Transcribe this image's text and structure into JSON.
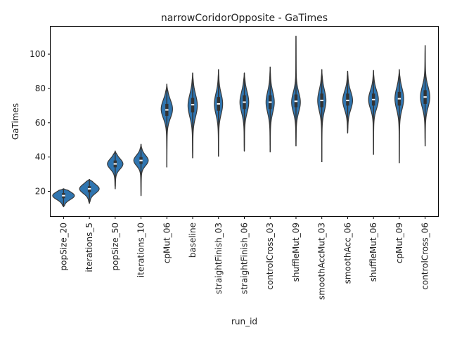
{
  "chart_data": {
    "type": "violin",
    "title": "narrowCoridorOpposite - GaTimes",
    "xlabel": "run_id",
    "ylabel": "GaTimes",
    "ylim": [
      5.5,
      116
    ],
    "yticks": [
      20,
      40,
      60,
      80,
      100
    ],
    "grid": false,
    "legend": "none",
    "colors": {
      "violin_fill": "#2f75b0",
      "violin_edge": "#3a3a3a",
      "median": "#ffffff",
      "box": "#333333"
    },
    "categories": [
      "popSize_20",
      "iterations_5",
      "popSize_50",
      "iterations_10",
      "cpMut_06",
      "baseline",
      "straightFinish_03",
      "straightFinish_06",
      "controlCross_03",
      "shuffleMut_09",
      "smoothAccMut_03",
      "smoothAcc_06",
      "shuffleMut_06",
      "cpMut_09",
      "controlCross_06"
    ],
    "series": [
      {
        "min": 11,
        "q1": 16,
        "median": 17.5,
        "q3": 19,
        "max": 21.5,
        "width": 0.42,
        "mode": 17.5
      },
      {
        "min": 13,
        "q1": 19.5,
        "median": 21.5,
        "q3": 23,
        "max": 27,
        "width": 0.38,
        "mode": 21.5
      },
      {
        "min": 21.5,
        "q1": 34,
        "median": 36,
        "q3": 38,
        "max": 43.5,
        "width": 0.3,
        "mode": 36
      },
      {
        "min": 17.5,
        "q1": 36,
        "median": 38,
        "q3": 40,
        "max": 47.5,
        "width": 0.28,
        "mode": 38
      },
      {
        "min": 34,
        "q1": 64,
        "median": 67.5,
        "q3": 71,
        "max": 82.5,
        "width": 0.22,
        "mode": 68
      },
      {
        "min": 39.5,
        "q1": 66,
        "median": 70.5,
        "q3": 74.5,
        "max": 89,
        "width": 0.18,
        "mode": 70
      },
      {
        "min": 40.5,
        "q1": 67,
        "median": 71,
        "q3": 75,
        "max": 91,
        "width": 0.16,
        "mode": 71
      },
      {
        "min": 43.5,
        "q1": 68,
        "median": 72,
        "q3": 76,
        "max": 89,
        "width": 0.17,
        "mode": 72
      },
      {
        "min": 43,
        "q1": 68,
        "median": 72,
        "q3": 76,
        "max": 92.5,
        "width": 0.16,
        "mode": 72
      },
      {
        "min": 46.5,
        "q1": 69,
        "median": 72.5,
        "q3": 76.5,
        "max": 110.5,
        "width": 0.17,
        "mode": 72
      },
      {
        "min": 37,
        "q1": 69,
        "median": 73,
        "q3": 77,
        "max": 91,
        "width": 0.16,
        "mode": 73
      },
      {
        "min": 54,
        "q1": 70,
        "median": 73,
        "q3": 77,
        "max": 90,
        "width": 0.19,
        "mode": 73
      },
      {
        "min": 41.5,
        "q1": 70,
        "median": 73.5,
        "q3": 77,
        "max": 90.5,
        "width": 0.19,
        "mode": 73.5
      },
      {
        "min": 36.5,
        "q1": 70,
        "median": 74,
        "q3": 78,
        "max": 91,
        "width": 0.17,
        "mode": 74
      },
      {
        "min": 46.5,
        "q1": 71,
        "median": 75,
        "q3": 79,
        "max": 105,
        "width": 0.18,
        "mode": 75
      }
    ]
  }
}
